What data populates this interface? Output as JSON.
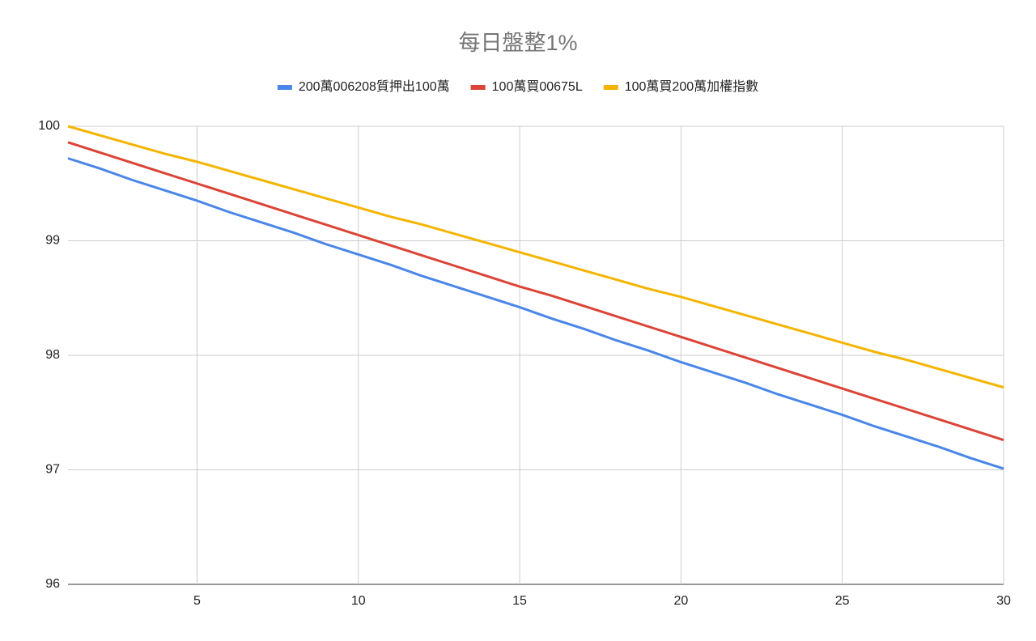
{
  "chart_data": {
    "type": "line",
    "title": "每日盤整1%",
    "x": [
      1,
      2,
      3,
      4,
      5,
      6,
      7,
      8,
      9,
      10,
      11,
      12,
      13,
      14,
      15,
      16,
      17,
      18,
      19,
      20,
      21,
      22,
      23,
      24,
      25,
      26,
      27,
      28,
      29,
      30
    ],
    "series": [
      {
        "name": "200萬006208質押出100萬",
        "color": "#4a86e8",
        "values": [
          99.72,
          99.63,
          99.53,
          99.44,
          99.35,
          99.25,
          99.16,
          99.07,
          98.97,
          98.88,
          98.79,
          98.69,
          98.6,
          98.51,
          98.42,
          98.32,
          98.23,
          98.13,
          98.04,
          97.94,
          97.85,
          97.76,
          97.66,
          97.57,
          97.48,
          97.38,
          97.29,
          97.2,
          97.1,
          97.01
        ]
      },
      {
        "name": "100萬買00675L",
        "color": "#db4437",
        "values": [
          99.86,
          99.77,
          99.68,
          99.59,
          99.5,
          99.41,
          99.32,
          99.23,
          99.14,
          99.05,
          98.96,
          98.87,
          98.78,
          98.69,
          98.6,
          98.52,
          98.43,
          98.34,
          98.25,
          98.16,
          98.07,
          97.98,
          97.89,
          97.8,
          97.71,
          97.62,
          97.53,
          97.44,
          97.35,
          97.26
        ]
      },
      {
        "name": "100萬買200萬加權指數",
        "color": "#f4b400",
        "values": [
          100,
          99.92,
          99.84,
          99.76,
          99.69,
          99.61,
          99.53,
          99.45,
          99.37,
          99.29,
          99.21,
          99.14,
          99.06,
          98.98,
          98.9,
          98.82,
          98.74,
          98.66,
          98.58,
          98.51,
          98.43,
          98.35,
          98.27,
          98.19,
          98.11,
          98.03,
          97.96,
          97.88,
          97.8,
          97.72
        ]
      }
    ],
    "xlim": [
      1,
      30
    ],
    "xticks": [
      5,
      10,
      15,
      20,
      25,
      30
    ],
    "ylim": [
      96,
      100
    ],
    "yticks": [
      96,
      97,
      98,
      99,
      100
    ],
    "grid": true,
    "legend": "top"
  }
}
